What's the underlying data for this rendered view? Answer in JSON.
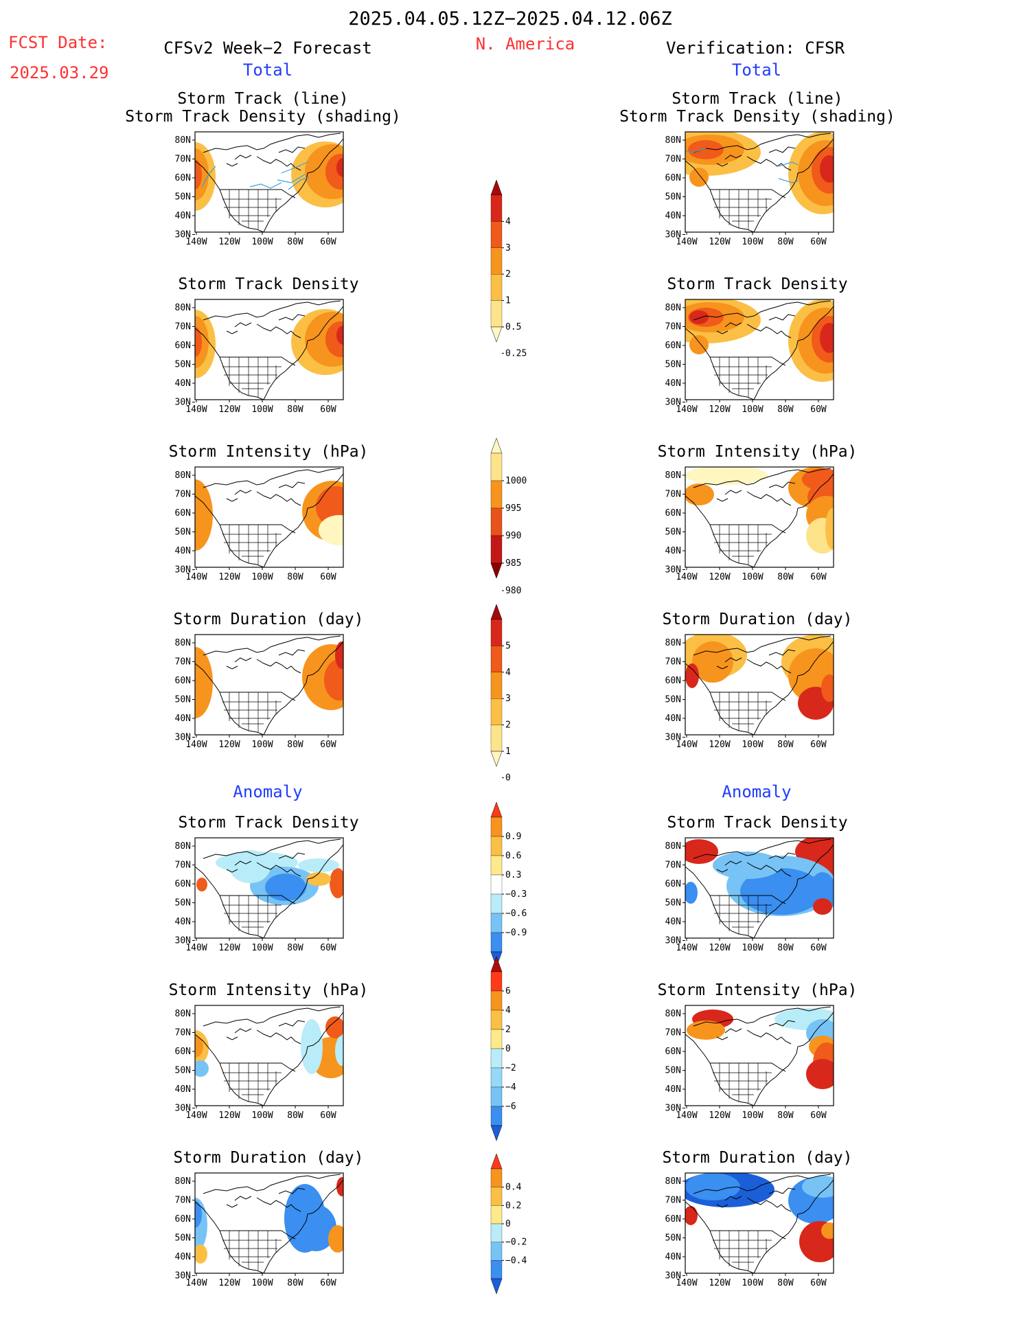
{
  "header": {
    "date_range": "2025.04.05.12Z−2025.04.12.06Z",
    "fcst_label": "FCST Date:",
    "fcst_date": "2025.03.29",
    "left_title": "CFSv2 Week−2 Forecast",
    "region": "N. America",
    "right_title": "Verification: CFSR"
  },
  "sections": {
    "total": "Total",
    "anomaly": "Anomaly"
  },
  "panel_titles": {
    "track_line": "Storm Track (line)",
    "track_shading": "Storm Track Density (shading)",
    "density": "Storm Track Density",
    "intensity": "Storm Intensity (hPa)",
    "duration": "Storm Duration (day)"
  },
  "axes": {
    "lat_labels": [
      "80N",
      "70N",
      "60N",
      "50N",
      "40N",
      "30N"
    ],
    "lon_labels": [
      "140W",
      "120W",
      "100W",
      "80W",
      "60W"
    ]
  },
  "colorbars": {
    "density_total": {
      "labels": [
        "4",
        "3",
        "2",
        "1",
        "0.5",
        "0.25"
      ],
      "colors": [
        "#a50a0a",
        "#d8281b",
        "#f05a1a",
        "#f7941d",
        "#fbbf45",
        "#fde38a",
        "#fff6c0"
      ]
    },
    "intensity_total": {
      "labels": [
        "1000",
        "995",
        "990",
        "985",
        "980"
      ],
      "colors": [
        "#fff6c0",
        "#fde38a",
        "#f7941d",
        "#e8521b",
        "#c41818",
        "#8c0000"
      ]
    },
    "duration_total": {
      "labels": [
        "5",
        "4",
        "3",
        "2",
        "1",
        "0"
      ],
      "colors": [
        "#a50a0a",
        "#d8281b",
        "#f05a1a",
        "#f7941d",
        "#fbbf45",
        "#fde38a",
        "#fff6c0"
      ]
    },
    "density_anom": {
      "labels": [
        "0.9",
        "0.6",
        "0.3",
        "−0.3",
        "−0.6",
        "−0.9"
      ],
      "colors": [
        "#ff3a1a",
        "#f7941d",
        "#fbbf45",
        "#ffe98a",
        "#ffffff",
        "#b8ecf8",
        "#78c3f5",
        "#3a8ff0",
        "#1a5fd8"
      ]
    },
    "intensity_anom": {
      "labels": [
        "6",
        "4",
        "2",
        "0",
        "−2",
        "−4",
        "−6"
      ],
      "colors": [
        "#b40a0a",
        "#ff3a1a",
        "#f7941d",
        "#fbbf45",
        "#ffe98a",
        "#b8ecf8",
        "#96d8f8",
        "#78c3f5",
        "#3a8ff0",
        "#1a5fd8"
      ]
    },
    "duration_anom": {
      "labels": [
        "0.4",
        "0.2",
        "0",
        "−0.2",
        "−0.4"
      ],
      "colors": [
        "#ff3a1a",
        "#f7941d",
        "#fbbf45",
        "#ffe98a",
        "#b8ecf8",
        "#78c3f5",
        "#3a8ff0",
        "#1a5fd8"
      ]
    }
  },
  "colors": {
    "red_text": "#ff3030",
    "blue_text": "#1f3cff",
    "track_line": "#3aa0d8"
  }
}
